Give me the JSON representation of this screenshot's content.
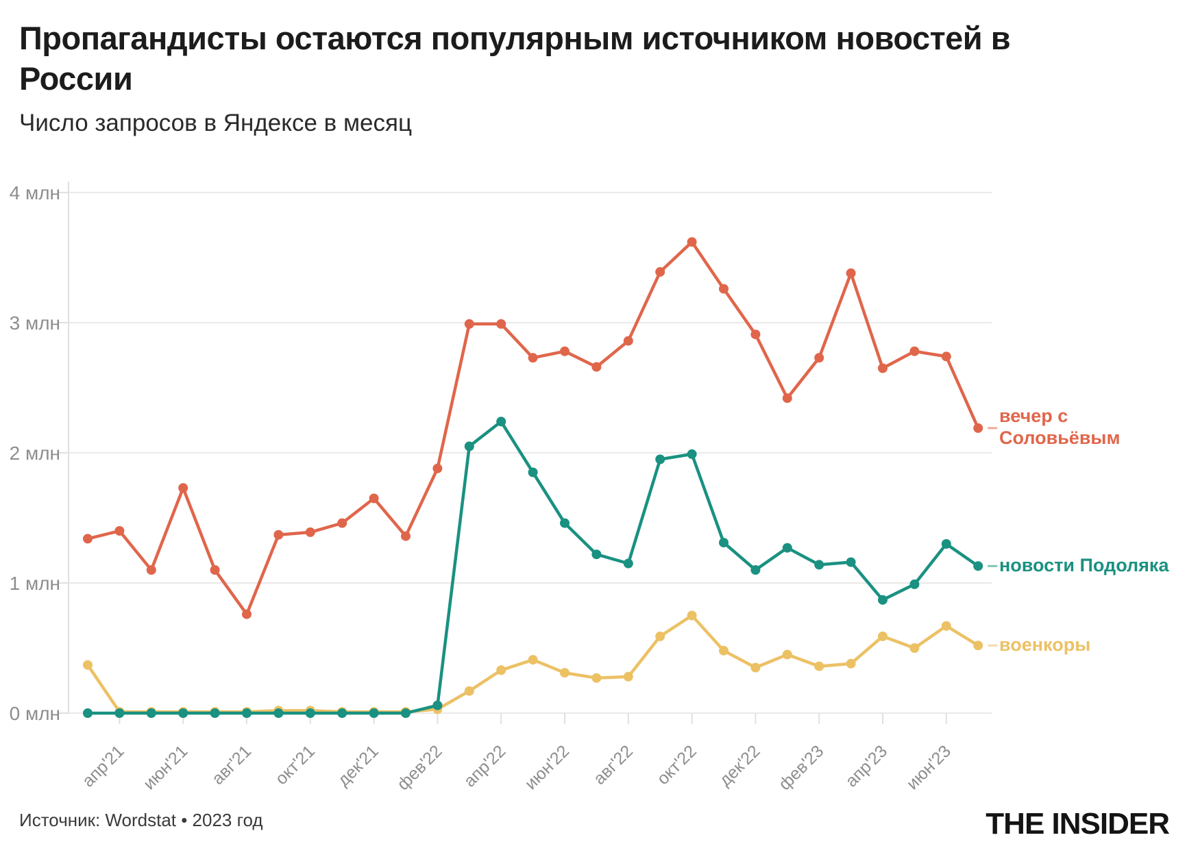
{
  "header": {
    "title": "Пропагандисты остаются популярным источником новостей в России",
    "subtitle": "Число запросов в Яндексе в месяц"
  },
  "footer": {
    "source": "Источник: Wordstat • 2023 год",
    "logo": "THE INSIDER"
  },
  "colors": {
    "grid": "#e9e9e9",
    "axis": "#e0e0e0",
    "tick_label": "#8d8d8d",
    "title_text": "#1c1c1c",
    "background": "#ffffff"
  },
  "chart_data": {
    "type": "line",
    "title": "Пропагандисты остаются популярным источником новостей в России",
    "subtitle": "Число запросов в Яндексе в месяц",
    "unit": "млн",
    "ylim": [
      0,
      4
    ],
    "grid": "horizontal",
    "legend_position": "right of line ends",
    "y_tick_labels": [
      "0 млн",
      "1 млн",
      "2 млн",
      "3 млн",
      "4 млн"
    ],
    "x_tick_labels": [
      "апр'21",
      "июн'21",
      "авг'21",
      "окт'21",
      "дек'21",
      "фев'22",
      "апр'22",
      "июн'22",
      "авг'22",
      "окт'22",
      "дек'22",
      "фев'23",
      "апр'23",
      "июн'23"
    ],
    "x": [
      "мар'21",
      "апр'21",
      "май'21",
      "июн'21",
      "июл'21",
      "авг'21",
      "сен'21",
      "окт'21",
      "ноя'21",
      "дек'21",
      "янв'22",
      "фев'22",
      "мар'22",
      "апр'22",
      "май'22",
      "июн'22",
      "июл'22",
      "авг'22",
      "сен'22",
      "окт'22",
      "ноя'22",
      "дек'22",
      "янв'23",
      "фев'23",
      "мар'23",
      "апр'23",
      "май'23",
      "июн'23",
      "июл'23"
    ],
    "series": [
      {
        "name": "вечер с Соловьёвым",
        "color": "#e0664b",
        "values": [
          1.34,
          1.4,
          1.1,
          1.73,
          1.1,
          0.76,
          1.37,
          1.39,
          1.46,
          1.65,
          1.36,
          1.88,
          2.99,
          2.99,
          2.73,
          2.78,
          2.66,
          2.86,
          3.39,
          3.62,
          3.26,
          2.91,
          2.42,
          2.73,
          3.38,
          2.65,
          2.78,
          2.74,
          2.19
        ]
      },
      {
        "name": "новости Подоляка",
        "color": "#1a9181",
        "values": [
          0,
          0,
          0,
          0,
          0,
          0,
          0,
          0,
          0,
          0,
          0,
          0.06,
          2.05,
          2.24,
          1.85,
          1.46,
          1.22,
          1.15,
          1.95,
          1.99,
          1.31,
          1.1,
          1.27,
          1.14,
          1.16,
          0.87,
          0.99,
          1.3,
          1.13
        ]
      },
      {
        "name": "военкоры",
        "color": "#ecc164",
        "values": [
          0.37,
          0.01,
          0.01,
          0.01,
          0.01,
          0.01,
          0.02,
          0.02,
          0.01,
          0.01,
          0.01,
          0.03,
          0.17,
          0.33,
          0.41,
          0.31,
          0.27,
          0.28,
          0.59,
          0.75,
          0.48,
          0.35,
          0.45,
          0.36,
          0.38,
          0.59,
          0.5,
          0.67,
          0.52
        ]
      }
    ]
  }
}
